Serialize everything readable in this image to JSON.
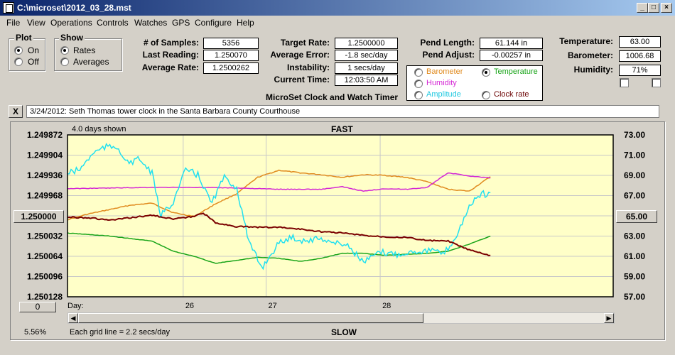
{
  "window": {
    "title": "C:\\microset\\2012_03_28.mst"
  },
  "menu": [
    "File",
    "View",
    "Operations",
    "Controls",
    "Watches",
    "GPS",
    "Configure",
    "Help"
  ],
  "plot_group": {
    "title": "Plot",
    "on": "On",
    "off": "Off",
    "selected": "On"
  },
  "show_group": {
    "title": "Show",
    "rates": "Rates",
    "averages": "Averages",
    "selected": "Rates"
  },
  "stats": {
    "samples_label": "# of Samples:",
    "samples": "5356",
    "last_label": "Last Reading:",
    "last": "1.250070",
    "avg_label": "Average Rate:",
    "avg": "1.2500262",
    "target_label": "Target Rate:",
    "target": "1.2500000",
    "avg_err_label": "Average Error:",
    "avg_err": "-1.8 sec/day",
    "instab_label": "Instability:",
    "instab": "1 secs/day",
    "time_label": "Current Time:",
    "time": "12:03:50 AM",
    "pend_len_label": "Pend Length:",
    "pend_len": "61.144 in",
    "pend_adj_label": "Pend Adjust:",
    "pend_adj": "-0.00257 in",
    "temp_label": "Temperature:",
    "temp": "63.00",
    "baro_label": "Barometer:",
    "baro": "1006.68",
    "hum_label": "Humidity:",
    "hum": "71%"
  },
  "subtitle": "MicroSet Clock and Watch Timer",
  "series_select": {
    "barometer": "Barometer",
    "temperature": "Temperature",
    "humidity": "Humidity",
    "amplitude": "Amplitude",
    "clock_rate": "Clock rate",
    "selected": "Temperature"
  },
  "colors": {
    "barometer": "#e08a1e",
    "temperature": "#1aa51a",
    "humidity": "#d426d4",
    "amplitude": "#20e0f0",
    "clock_rate": "#7a0000",
    "plot_bg": "#ffffc8"
  },
  "note": {
    "close": "X",
    "text": "3/24/2012: Seth Thomas tower clock in the Santa Barbara County Courthouse"
  },
  "plot": {
    "days_shown": "4.0 days shown",
    "fast": "FAST",
    "slow": "SLOW",
    "day_label": "Day:",
    "grid_note": "Each grid line = 2.2 secs/day",
    "percent": "5.56%",
    "center_button": "1.250000",
    "right_button": "65.00",
    "zero_button": "0"
  },
  "chart_data": {
    "type": "line",
    "x_ticks": [
      "26",
      "27",
      "28"
    ],
    "y_left": {
      "ticks": [
        "1.249872",
        "1.249904",
        "1.249936",
        "1.249968",
        "1.250000",
        "1.250032",
        "1.250064",
        "1.250096",
        "1.250128"
      ],
      "range": [
        1.250128,
        1.249872
      ]
    },
    "y_right": {
      "ticks": [
        "73.00",
        "71.00",
        "69.00",
        "67.00",
        "65.00",
        "63.00",
        "61.00",
        "59.00",
        "57.00"
      ],
      "range": [
        57,
        73
      ]
    },
    "grid": true,
    "series": [
      {
        "key": "barometer",
        "x": [
          0.0,
          0.05,
          0.1,
          0.15,
          0.2,
          0.25,
          0.3,
          0.35,
          0.4,
          0.45,
          0.5,
          0.55,
          0.6,
          0.65,
          0.7,
          0.75,
          0.8,
          0.85,
          0.9,
          0.95,
          1.0
        ],
        "values": [
          1.250006,
          1.249997,
          1.24999,
          1.249983,
          1.24998,
          1.249995,
          1.250001,
          1.249981,
          1.249965,
          1.249939,
          1.249928,
          1.249932,
          1.249935,
          1.249939,
          1.249935,
          1.249936,
          1.249939,
          1.249946,
          1.249958,
          1.249961,
          1.249938
        ]
      },
      {
        "key": "temperature",
        "x": [
          0.0,
          0.1,
          0.2,
          0.25,
          0.3,
          0.35,
          0.4,
          0.45,
          0.5,
          0.55,
          0.6,
          0.65,
          0.7,
          0.75,
          0.8,
          0.85,
          0.9,
          0.95,
          1.0
        ],
        "values": [
          63.3,
          63.0,
          62.5,
          61.5,
          61.0,
          60.3,
          60.6,
          60.9,
          60.8,
          60.5,
          60.8,
          61.3,
          61.3,
          61.1,
          61.2,
          61.3,
          61.5,
          62.2,
          63.0
        ]
      },
      {
        "key": "humidity",
        "x": [
          0.0,
          0.1,
          0.2,
          0.3,
          0.4,
          0.5,
          0.6,
          0.65,
          0.7,
          0.75,
          0.8,
          0.85,
          0.9,
          0.95,
          1.0
        ],
        "values": [
          1.249957,
          1.249956,
          1.249955,
          1.249955,
          1.249956,
          1.249958,
          1.249958,
          1.249954,
          1.249961,
          1.249957,
          1.249958,
          1.249955,
          1.249932,
          1.249937,
          1.24994
        ]
      },
      {
        "key": "amplitude",
        "x": [
          0.0,
          0.03,
          0.06,
          0.09,
          0.12,
          0.14,
          0.17,
          0.2,
          0.22,
          0.25,
          0.28,
          0.31,
          0.34,
          0.37,
          0.4,
          0.43,
          0.46,
          0.5,
          0.53,
          0.56,
          0.6,
          0.63,
          0.66,
          0.7,
          0.74,
          0.78,
          0.82,
          0.86,
          0.89,
          0.92,
          0.95,
          0.98,
          1.0
        ],
        "values": [
          69.2,
          69.6,
          71.2,
          71.8,
          71.8,
          70.2,
          70.6,
          69.2,
          65.0,
          66.4,
          69.6,
          69.0,
          66.2,
          68.8,
          67.8,
          62.2,
          59.9,
          62.3,
          62.9,
          62.5,
          62.8,
          62.3,
          62.2,
          60.4,
          61.4,
          61.2,
          61.5,
          61.6,
          61.2,
          63.0,
          66.0,
          67.2,
          67.0
        ]
      },
      {
        "key": "clock_rate",
        "x": [
          0.0,
          0.05,
          0.1,
          0.15,
          0.2,
          0.25,
          0.3,
          0.32,
          0.35,
          0.4,
          0.45,
          0.5,
          0.55,
          0.6,
          0.65,
          0.7,
          0.75,
          0.8,
          0.85,
          0.9,
          0.95,
          1.0
        ],
        "values": [
          1.250002,
          1.250003,
          1.250007,
          1.250003,
          1.249999,
          1.250005,
          1.250001,
          1.249995,
          1.250011,
          1.250017,
          1.250018,
          1.250018,
          1.250021,
          1.250025,
          1.250027,
          1.250031,
          1.250033,
          1.250034,
          1.250039,
          1.25004,
          1.250054,
          1.250063
        ]
      }
    ]
  }
}
